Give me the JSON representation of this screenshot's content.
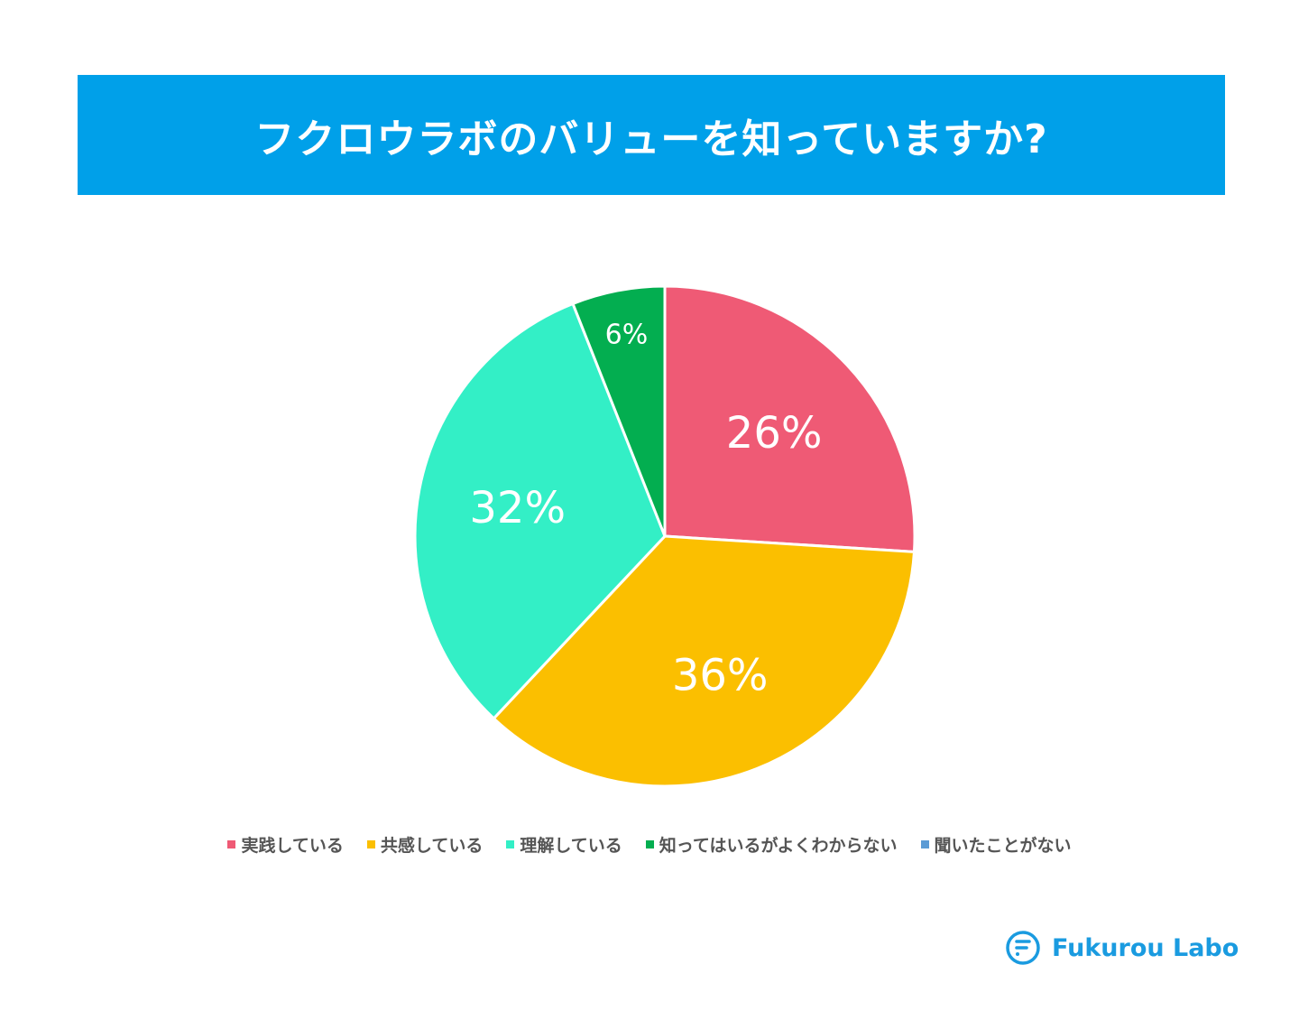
{
  "chart_data": {
    "type": "pie",
    "title": "フクロウラボのバリューを知っていますか?",
    "categories": [
      "実践している",
      "共感している",
      "理解している",
      "知ってはいるがよくわからない",
      "聞いたことがない"
    ],
    "values": [
      26,
      36,
      32,
      6,
      0
    ],
    "labels": [
      "26%",
      "36%",
      "32%",
      "6%",
      ""
    ],
    "colors": [
      "#EF5A75",
      "#FBBF00",
      "#33EFC6",
      "#03AE50",
      "#5B9BD5"
    ],
    "start": "top",
    "direction": "clockwise",
    "legend_position": "bottom"
  },
  "header": {
    "background": "#00A0E9"
  },
  "logo": {
    "text": "Fukurou Labo",
    "icon": "fukurou-labo-logo-icon"
  }
}
